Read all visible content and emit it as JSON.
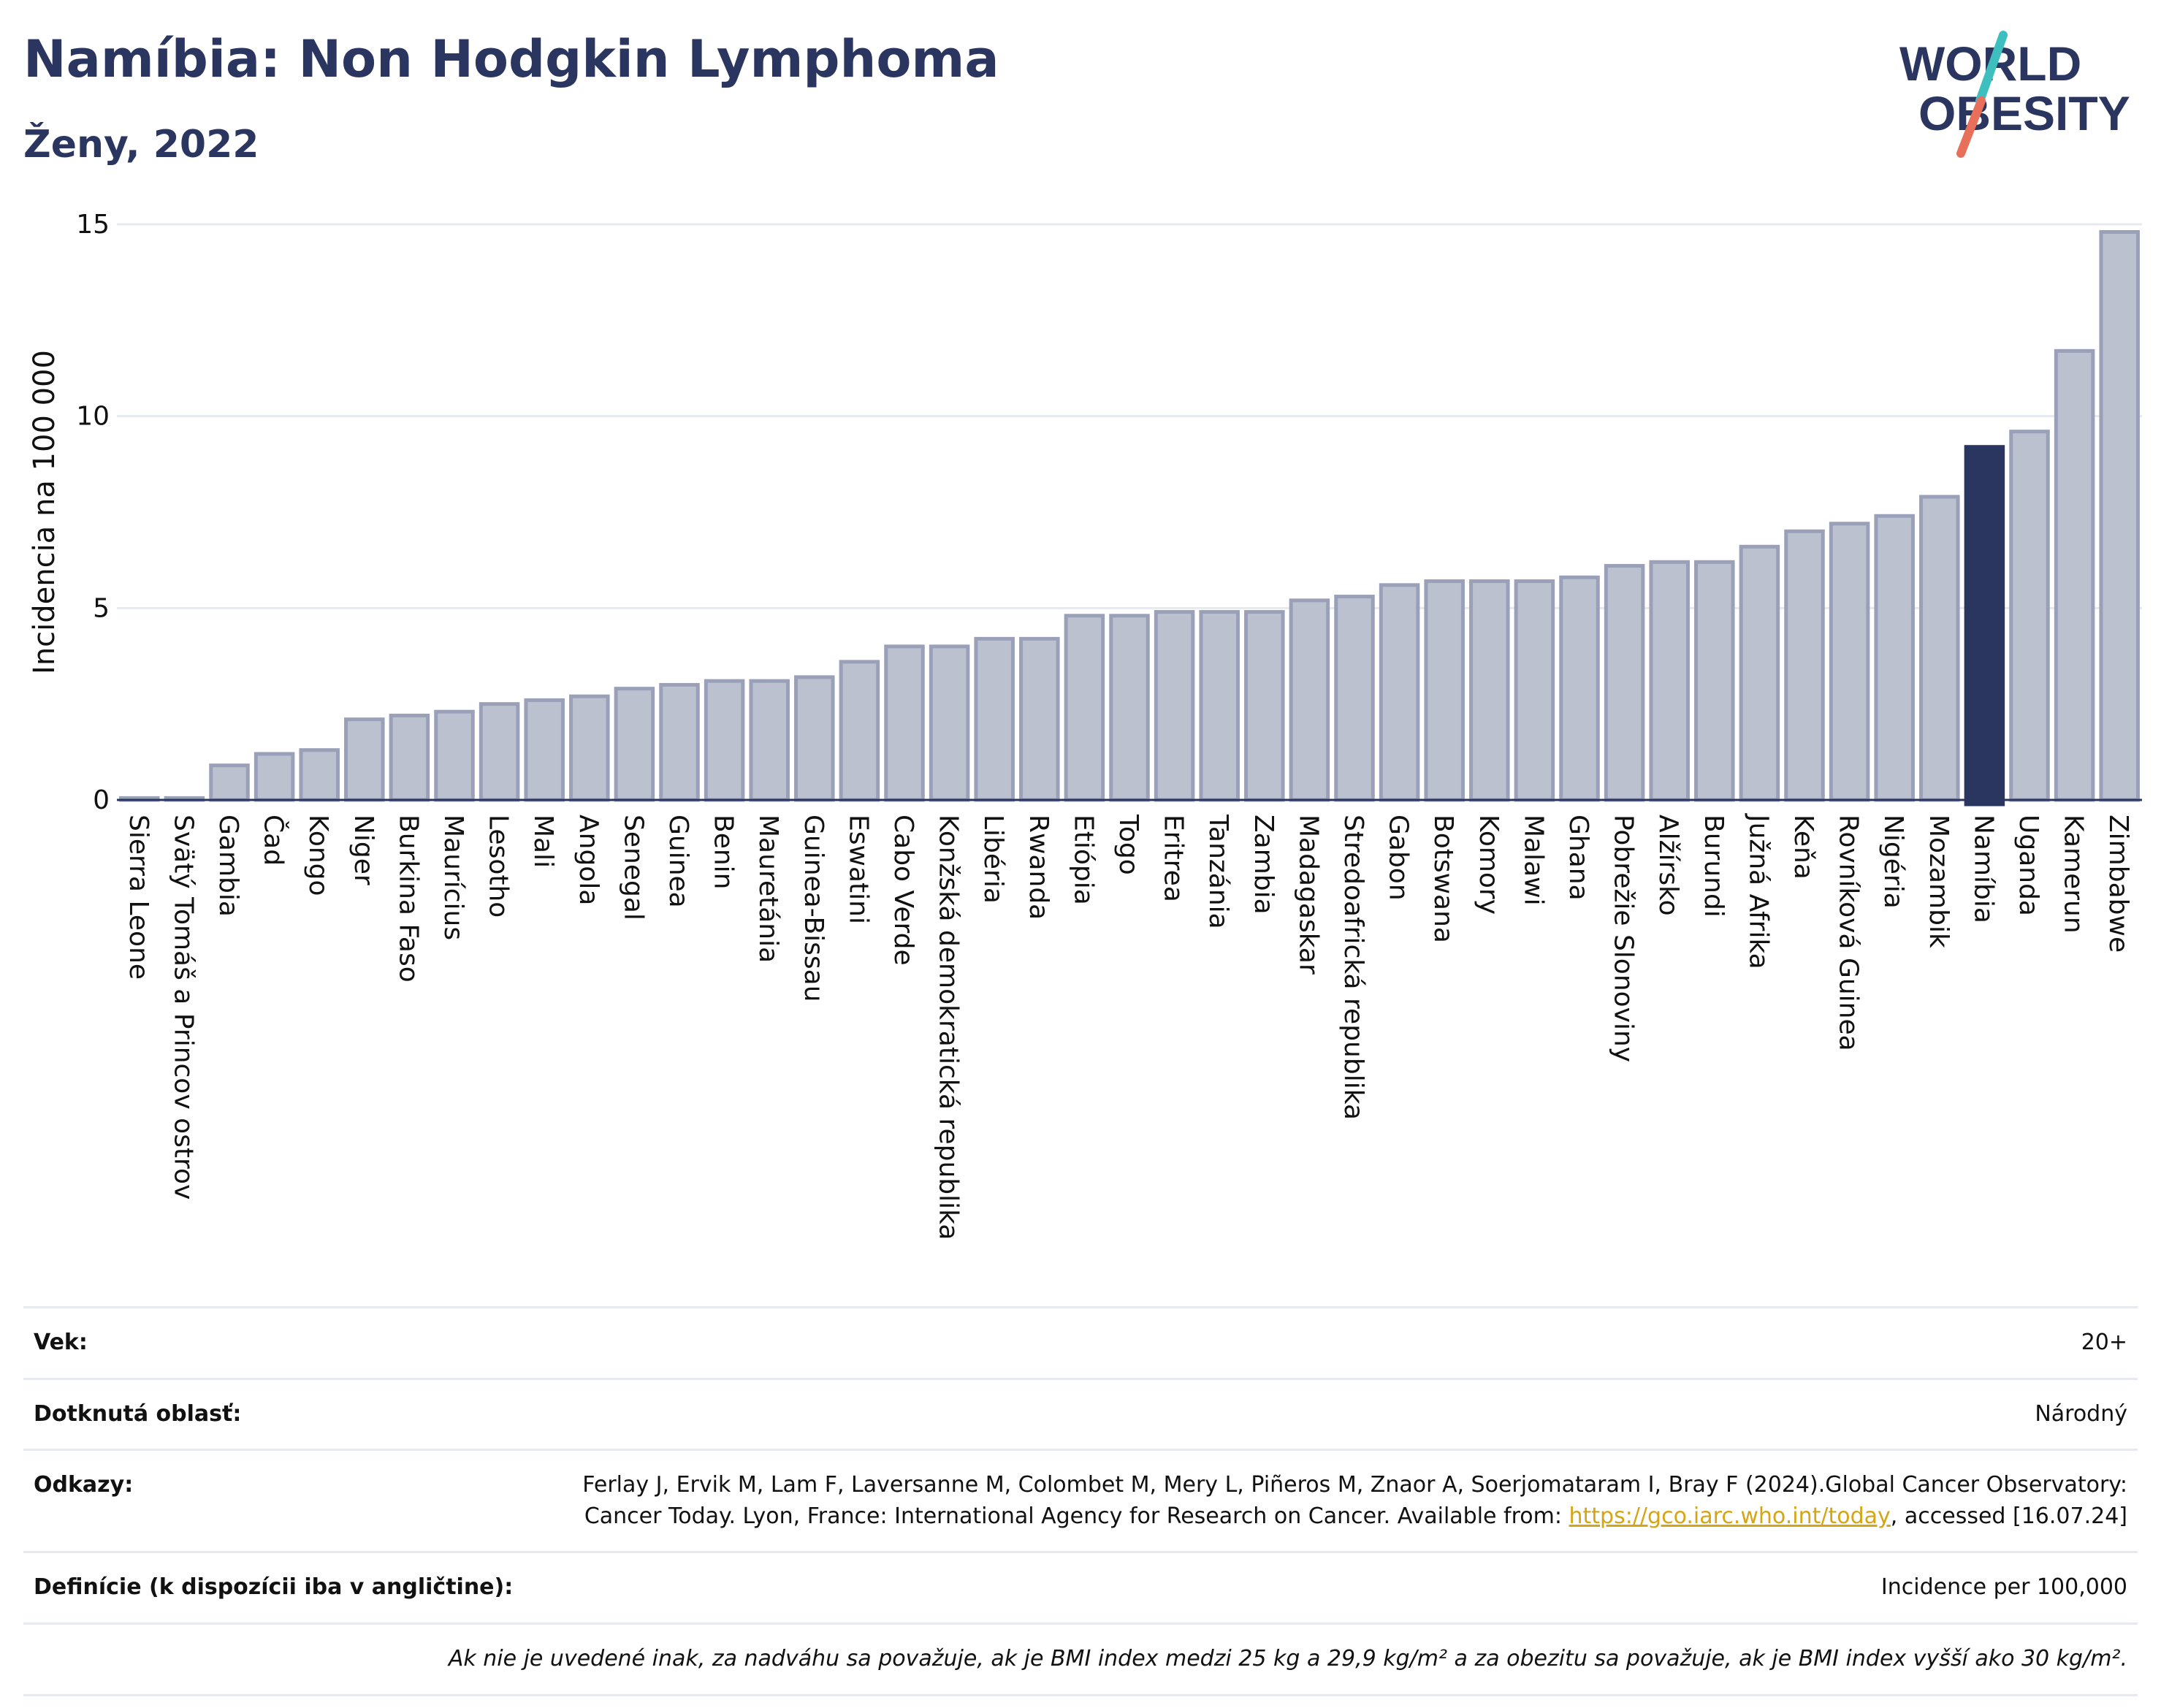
{
  "header": {
    "title": "Namíbia: Non Hodgkin Lymphoma",
    "subtitle": "Ženy, 2022"
  },
  "logo": {
    "line1": "WORLD",
    "line2": "OBESITY",
    "slash_colors": [
      "#3dbfc0",
      "#e8705a"
    ]
  },
  "chart_data": {
    "type": "bar",
    "ylabel": "Incidencia na 100 000",
    "ylim": [
      0,
      15
    ],
    "yticks": [
      0,
      5,
      10,
      15
    ],
    "grid": true,
    "highlight": "Namíbia",
    "colors": {
      "bar": "#bcc1d0",
      "bar_border": "#99a0b8",
      "highlight": "#2b3660",
      "grid": "#e6e9ef",
      "axis": "#2b3660"
    },
    "categories": [
      "Sierra Leone",
      "Svätý Tomáš a Princov ostrov",
      "Gambia",
      "Čad",
      "Kongo",
      "Niger",
      "Burkina Faso",
      "Maurícius",
      "Lesotho",
      "Mali",
      "Angola",
      "Senegal",
      "Guinea",
      "Benin",
      "Mauretánia",
      "Guinea-Bissau",
      "Eswatini",
      "Cabo Verde",
      "Konžská demokratická republika",
      "Libéria",
      "Rwanda",
      "Etiópia",
      "Togo",
      "Eritrea",
      "Tanzánia",
      "Zambia",
      "Madagaskar",
      "Stredoafrická republika",
      "Gabon",
      "Botswana",
      "Komory",
      "Malawi",
      "Ghana",
      "Pobrežie Slonoviny",
      "Alžírsko",
      "Burundi",
      "Južná Afrika",
      "Keňa",
      "Rovníková Guinea",
      "Nigéria",
      "Mozambik",
      "Namíbia",
      "Uganda",
      "Kamerun",
      "Zimbabwe"
    ],
    "values": [
      0.05,
      0.05,
      0.9,
      1.2,
      1.3,
      2.1,
      2.2,
      2.3,
      2.5,
      2.6,
      2.7,
      2.9,
      3.0,
      3.1,
      3.1,
      3.2,
      3.6,
      4.0,
      4.0,
      4.2,
      4.2,
      4.8,
      4.8,
      4.9,
      4.9,
      4.9,
      5.2,
      5.3,
      5.6,
      5.7,
      5.7,
      5.7,
      5.8,
      6.1,
      6.2,
      6.2,
      6.6,
      7.0,
      7.2,
      7.4,
      7.9,
      9.2,
      9.6,
      11.7,
      14.8
    ]
  },
  "info": {
    "age_label": "Vek:",
    "age_value": "20+",
    "area_label": "Dotknutá oblasť:",
    "area_value": "Národný",
    "refs_label": "Odkazy:",
    "refs_text1": "Ferlay J, Ervik M, Lam F, Laversanne M, Colombet M, Mery L, Piñeros M, Znaor A, Soerjomataram I, Bray F (2024).Global Cancer Observatory: Cancer Today. Lyon, France: International Agency for Research on Cancer. Available from: ",
    "refs_link": "https://gco.iarc.who.int/today",
    "refs_text2": ", accessed [16.07.24]",
    "def_label": "Definície (k dispozícii iba v angličtine):",
    "def_value": "Incidence per 100,000",
    "note": "Ak nie je uvedené inak, za nadváhu sa považuje, ak je BMI index medzi 25 kg a 29,9 kg/m² a za obezitu sa považuje, ak je BMI index vyšší ako 30 kg/m²."
  }
}
